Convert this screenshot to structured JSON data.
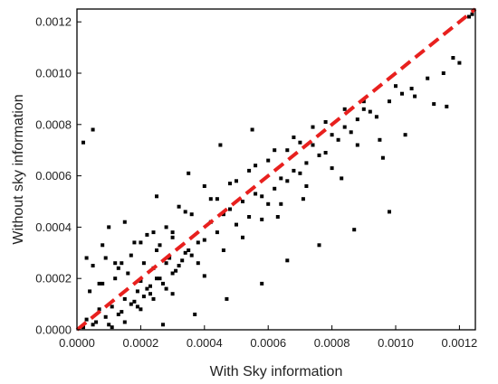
{
  "chart_data": {
    "type": "scatter",
    "title": "",
    "xlabel": "With Sky information",
    "ylabel": "Without sky information",
    "xlim": [
      0,
      0.00125
    ],
    "ylim": [
      0,
      0.00125
    ],
    "x_ticks": [
      0,
      0.0002,
      0.0004,
      0.0006,
      0.0008,
      0.001,
      0.0012
    ],
    "x_tick_labels": [
      "0.0000",
      "0.0002",
      "0.0004",
      "0.0006",
      "0.0008",
      "0.0010",
      "0.0012"
    ],
    "y_ticks": [
      0,
      0.0002,
      0.0004,
      0.0006,
      0.0008,
      0.001,
      0.0012
    ],
    "y_tick_labels": [
      "0.0000",
      "0.0002",
      "0.0004",
      "0.0006",
      "0.0008",
      "0.0010",
      "0.0012"
    ],
    "grid": false,
    "legend": "none",
    "point_color": "#000000",
    "reference_line": {
      "style": "dashed",
      "color": "#e8201e",
      "x": [
        0,
        0.00125
      ],
      "y": [
        0,
        0.00125
      ]
    },
    "series": [
      {
        "x": [
          3e-05,
          5e-05,
          7e-05,
          9e-05,
          0.00011,
          0.00013,
          0.00015,
          0.00017,
          0.00019,
          0.00021,
          0.00023,
          0.00025,
          4e-05,
          8e-05,
          0.00012,
          0.00016,
          0.0002,
          0.00024,
          0.00028,
          2e-05,
          6e-05,
          0.0001,
          0.00014,
          0.00018,
          0.00022,
          0.00026,
          0.0003,
          5e-05,
          9e-05,
          0.00013,
          0.00017,
          0.00021,
          0.00025,
          0.00029,
          0.00011,
          0.00015,
          0.00019,
          0.00023,
          0.00027,
          0.00031,
          0.00033,
          0.00035,
          0.00018,
          0.00022,
          0.00026,
          0.0003,
          0.00034,
          0.00038,
          0.0002,
          0.00024,
          0.00028,
          0.00032,
          0.00036,
          0.0004,
          0.00044,
          0.00042,
          0.00046,
          0.0005,
          0.00054,
          0.00048,
          0.00052,
          0.00056,
          0.0006,
          0.00058,
          0.00062,
          0.00066,
          0.0007,
          0.00064,
          0.00068,
          0.00072,
          0.00076,
          0.00074,
          0.00078,
          0.00082,
          0.00086,
          0.0008,
          0.00084,
          0.00088,
          0.00092,
          0.0009,
          0.00094,
          0.00098,
          0.00102,
          0.001,
          0.00106,
          0.0011,
          0.00115,
          0.0012,
          0.00123,
          0.00095,
          0.00105,
          0.00118,
          0.00124,
          0.00112,
          0.00025,
          0.00035,
          0.00045,
          0.00055,
          0.00015,
          0.0001,
          5e-05,
          2e-05,
          3e-05,
          8e-05,
          0.0004,
          0.0003,
          0.00038,
          0.00046,
          0.00052,
          0.00058,
          0.00064,
          0.00072,
          0.0008,
          0.00088,
          0.00012,
          0.0002,
          0.00028,
          0.00036,
          0.00044,
          0.0005,
          0.00056,
          0.00062,
          0.00068,
          0.00074,
          0.0003,
          0.00034,
          0.00042,
          0.00048,
          0.0006,
          0.00066,
          0.0007,
          0.00078,
          0.00084,
          0.0009,
          7e-05,
          0.00014,
          0.00024,
          0.00032,
          0.0004,
          0.00054,
          0.00063,
          0.00071,
          0.00083,
          0.00096,
          0.00103,
          0.00116,
          0.00098,
          0.00087,
          0.00076,
          0.00066,
          0.00058,
          0.00047,
          0.00037,
          0.00027
        ],
        "y": [
          4e-05,
          2e-05,
          8e-05,
          5e-05,
          9e-05,
          6e-05,
          0.00012,
          0.0001,
          0.00015,
          0.00013,
          0.00017,
          0.0002,
          0.00015,
          0.00018,
          0.0002,
          0.00022,
          0.00019,
          0.00024,
          0.00026,
          1e-05,
          3e-05,
          2e-05,
          7e-05,
          0.00011,
          0.00016,
          0.0002,
          0.00022,
          0.00025,
          0.00028,
          0.00024,
          0.00029,
          0.00026,
          0.00031,
          0.00028,
          1e-05,
          3e-05,
          9e-05,
          0.00014,
          0.00018,
          0.00023,
          0.00027,
          0.00031,
          0.00034,
          0.00037,
          0.00033,
          0.00036,
          0.0003,
          0.00034,
          8e-05,
          0.00012,
          0.00016,
          0.00025,
          0.00029,
          0.00035,
          0.00038,
          0.00042,
          0.00045,
          0.00041,
          0.00044,
          0.00047,
          0.0005,
          0.00053,
          0.00049,
          0.00052,
          0.00055,
          0.00058,
          0.00061,
          0.00059,
          0.00062,
          0.00065,
          0.00068,
          0.00072,
          0.00069,
          0.00074,
          0.00077,
          0.00076,
          0.00079,
          0.00082,
          0.00085,
          0.00086,
          0.00083,
          0.00089,
          0.00092,
          0.00095,
          0.00091,
          0.00098,
          0.001,
          0.00104,
          0.00122,
          0.00074,
          0.00094,
          0.00106,
          0.00123,
          0.00088,
          0.00052,
          0.00061,
          0.00072,
          0.00078,
          0.00042,
          0.0004,
          0.00078,
          0.00073,
          0.00028,
          0.00033,
          0.00021,
          0.00014,
          0.00026,
          0.00031,
          0.00036,
          0.00043,
          0.00049,
          0.00056,
          0.00063,
          0.00072,
          0.00026,
          0.00034,
          0.0004,
          0.00045,
          0.00051,
          0.00058,
          0.00064,
          0.0007,
          0.00075,
          0.00079,
          0.00038,
          0.00046,
          0.00051,
          0.00057,
          0.00066,
          0.0007,
          0.00073,
          0.00081,
          0.00086,
          0.00089,
          0.00018,
          0.00026,
          0.00038,
          0.00048,
          0.00056,
          0.00062,
          0.00044,
          0.00051,
          0.00059,
          0.00067,
          0.00076,
          0.00087,
          0.00046,
          0.00039,
          0.00033,
          0.00027,
          0.00018,
          0.00012,
          6e-05,
          2e-05
        ]
      }
    ]
  }
}
